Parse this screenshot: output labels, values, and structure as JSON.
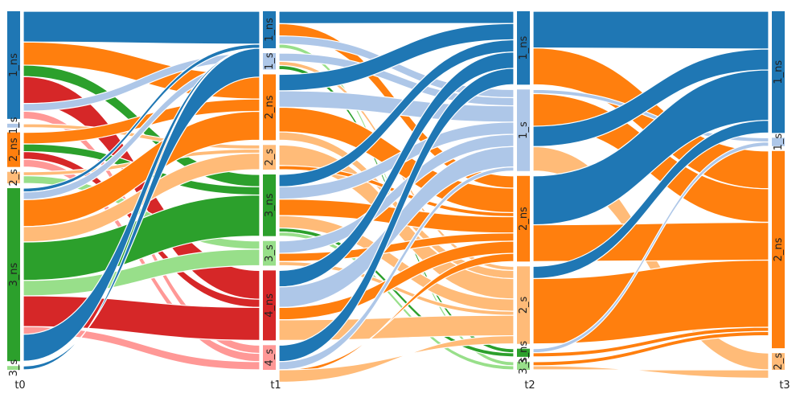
{
  "colors": {
    "1_ns": "#1f77b4",
    "1_s": "#aec7e8",
    "2_ns": "#ff7f0e",
    "2_s": "#ffbb78",
    "3_ns": "#2ca02c",
    "3_s": "#98df8a",
    "4_ns": "#d62728",
    "4_s": "#ff9896"
  },
  "chart_data": {
    "type": "sankey",
    "stages": [
      "t0",
      "t1",
      "t2",
      "t3"
    ],
    "nodes": {
      "t0": [
        {
          "id": "1_ns",
          "label": "1_ns",
          "value": 140
        },
        {
          "id": "1_s",
          "label": "1_s",
          "value": 5
        },
        {
          "id": "2_ns",
          "label": "2_ns",
          "value": 45
        },
        {
          "id": "2_s",
          "label": "2_s",
          "value": 15
        },
        {
          "id": "3_ns",
          "label": "3_ns",
          "value": 225
        },
        {
          "id": "3_s",
          "label": "3_s",
          "value": 5
        }
      ],
      "t1": [
        {
          "id": "1_ns",
          "label": "1_ns",
          "value": 45
        },
        {
          "id": "1_s",
          "label": "1_s",
          "value": 20
        },
        {
          "id": "2_ns",
          "label": "2_ns",
          "value": 80
        },
        {
          "id": "2_s",
          "label": "2_s",
          "value": 30
        },
        {
          "id": "3_ns",
          "label": "3_ns",
          "value": 75
        },
        {
          "id": "3_s",
          "label": "3_s",
          "value": 30
        },
        {
          "id": "4_ns",
          "label": "4_ns",
          "value": 85
        },
        {
          "id": "4_s",
          "label": "4_s",
          "value": 30
        }
      ],
      "t2": [
        {
          "id": "1_ns",
          "label": "1_ns",
          "value": 90
        },
        {
          "id": "1_s",
          "label": "1_s",
          "value": 100
        },
        {
          "id": "2_ns",
          "label": "2_ns",
          "value": 105
        },
        {
          "id": "2_s",
          "label": "2_s",
          "value": 95
        },
        {
          "id": "3_ns",
          "label": "3_ns",
          "value": 10
        },
        {
          "id": "3_s",
          "label": "3_s",
          "value": 10
        }
      ],
      "t3": [
        {
          "id": "1_ns",
          "label": "1_ns",
          "value": 145
        },
        {
          "id": "1_s",
          "label": "1_s",
          "value": 10
        },
        {
          "id": "2_ns",
          "label": "2_ns",
          "value": 235
        },
        {
          "id": "2_s",
          "label": "2_s",
          "value": 20
        }
      ]
    },
    "links": [
      {
        "stage": 0,
        "source": "1_ns",
        "target": "1_ns",
        "value": 40
      },
      {
        "stage": 0,
        "source": "1_ns",
        "target": "2_ns",
        "value": 30
      },
      {
        "stage": 0,
        "source": "1_ns",
        "target": "3_ns",
        "value": 15
      },
      {
        "stage": 0,
        "source": "1_ns",
        "target": "4_ns",
        "value": 35
      },
      {
        "stage": 0,
        "source": "1_ns",
        "target": "1_s",
        "value": 10
      },
      {
        "stage": 0,
        "source": "1_ns",
        "target": "4_s",
        "value": 10
      },
      {
        "stage": 0,
        "source": "1_s",
        "target": "2_s",
        "value": 5
      },
      {
        "stage": 0,
        "source": "2_ns",
        "target": "2_ns",
        "value": 15
      },
      {
        "stage": 0,
        "source": "2_ns",
        "target": "3_ns",
        "value": 10
      },
      {
        "stage": 0,
        "source": "2_ns",
        "target": "4_ns",
        "value": 10
      },
      {
        "stage": 0,
        "source": "2_ns",
        "target": "4_s",
        "value": 10
      },
      {
        "stage": 0,
        "source": "2_s",
        "target": "2_s",
        "value": 5
      },
      {
        "stage": 0,
        "source": "2_s",
        "target": "3_s",
        "value": 10
      },
      {
        "stage": 0,
        "source": "3_ns",
        "target": "1_ns",
        "value": 5
      },
      {
        "stage": 0,
        "source": "3_ns",
        "target": "1_s",
        "value": 10
      },
      {
        "stage": 0,
        "source": "3_ns",
        "target": "2_ns",
        "value": 35
      },
      {
        "stage": 0,
        "source": "3_ns",
        "target": "2_s",
        "value": 20
      },
      {
        "stage": 0,
        "source": "3_ns",
        "target": "3_ns",
        "value": 50
      },
      {
        "stage": 0,
        "source": "3_ns",
        "target": "3_s",
        "value": 20
      },
      {
        "stage": 0,
        "source": "3_ns",
        "target": "4_ns",
        "value": 40
      },
      {
        "stage": 0,
        "source": "3_ns",
        "target": "4_s",
        "value": 10
      },
      {
        "stage": 0,
        "source": "3_ns",
        "target": "1_ns",
        "value": 35
      },
      {
        "stage": 0,
        "source": "3_s",
        "target": "1_ns",
        "value": 5
      },
      {
        "stage": 1,
        "source": "1_ns",
        "target": "1_ns",
        "value": 15
      },
      {
        "stage": 1,
        "source": "1_ns",
        "target": "2_ns",
        "value": 15
      },
      {
        "stage": 1,
        "source": "1_ns",
        "target": "1_s",
        "value": 10
      },
      {
        "stage": 1,
        "source": "1_ns",
        "target": "3_s",
        "value": 5
      },
      {
        "stage": 1,
        "source": "1_s",
        "target": "1_s",
        "value": 10
      },
      {
        "stage": 1,
        "source": "1_s",
        "target": "2_s",
        "value": 5
      },
      {
        "stage": 1,
        "source": "1_s",
        "target": "3_ns",
        "value": 5
      },
      {
        "stage": 1,
        "source": "2_ns",
        "target": "1_ns",
        "value": 20
      },
      {
        "stage": 1,
        "source": "2_ns",
        "target": "1_s",
        "value": 20
      },
      {
        "stage": 1,
        "source": "2_ns",
        "target": "2_ns",
        "value": 30
      },
      {
        "stage": 1,
        "source": "2_ns",
        "target": "2_s",
        "value": 10
      },
      {
        "stage": 1,
        "source": "2_s",
        "target": "2_s",
        "value": 25
      },
      {
        "stage": 1,
        "source": "2_s",
        "target": "2_ns",
        "value": 5
      },
      {
        "stage": 1,
        "source": "3_ns",
        "target": "1_ns",
        "value": 15
      },
      {
        "stage": 1,
        "source": "3_ns",
        "target": "1_s",
        "value": 15
      },
      {
        "stage": 1,
        "source": "3_ns",
        "target": "2_ns",
        "value": 20
      },
      {
        "stage": 1,
        "source": "3_ns",
        "target": "2_s",
        "value": 15
      },
      {
        "stage": 1,
        "source": "3_ns",
        "target": "3_ns",
        "value": 5
      },
      {
        "stage": 1,
        "source": "3_ns",
        "target": "3_s",
        "value": 5
      },
      {
        "stage": 1,
        "source": "3_s",
        "target": "1_s",
        "value": 15
      },
      {
        "stage": 1,
        "source": "3_s",
        "target": "2_ns",
        "value": 10
      },
      {
        "stage": 1,
        "source": "3_s",
        "target": "2_s",
        "value": 5
      },
      {
        "stage": 1,
        "source": "4_ns",
        "target": "1_ns",
        "value": 20
      },
      {
        "stage": 1,
        "source": "4_ns",
        "target": "1_s",
        "value": 25
      },
      {
        "stage": 1,
        "source": "4_ns",
        "target": "2_ns",
        "value": 15
      },
      {
        "stage": 1,
        "source": "4_ns",
        "target": "2_s",
        "value": 25
      },
      {
        "stage": 1,
        "source": "4_s",
        "target": "1_ns",
        "value": 20
      },
      {
        "stage": 1,
        "source": "4_s",
        "target": "1_s",
        "value": 15
      },
      {
        "stage": 1,
        "source": "4_s",
        "target": "2_ns",
        "value": 10
      },
      {
        "stage": 1,
        "source": "4_s",
        "target": "2_s",
        "value": 10
      },
      {
        "stage": 2,
        "source": "1_ns",
        "target": "1_ns",
        "value": 45
      },
      {
        "stage": 2,
        "source": "1_ns",
        "target": "2_ns",
        "value": 45
      },
      {
        "stage": 2,
        "source": "1_s",
        "target": "1_s",
        "value": 5
      },
      {
        "stage": 2,
        "source": "1_s",
        "target": "2_ns",
        "value": 40
      },
      {
        "stage": 2,
        "source": "1_s",
        "target": "1_ns",
        "value": 25
      },
      {
        "stage": 2,
        "source": "1_s",
        "target": "2_s",
        "value": 30
      },
      {
        "stage": 2,
        "source": "2_ns",
        "target": "1_ns",
        "value": 60
      },
      {
        "stage": 2,
        "source": "2_ns",
        "target": "2_ns",
        "value": 45
      },
      {
        "stage": 2,
        "source": "2_s",
        "target": "1_ns",
        "value": 15
      },
      {
        "stage": 2,
        "source": "2_s",
        "target": "2_ns",
        "value": 80
      },
      {
        "stage": 2,
        "source": "3_ns",
        "target": "1_s",
        "value": 5
      },
      {
        "stage": 2,
        "source": "3_ns",
        "target": "2_ns",
        "value": 5
      },
      {
        "stage": 2,
        "source": "3_s",
        "target": "2_ns",
        "value": 5
      },
      {
        "stage": 2,
        "source": "3_s",
        "target": "2_s",
        "value": 5
      }
    ]
  }
}
